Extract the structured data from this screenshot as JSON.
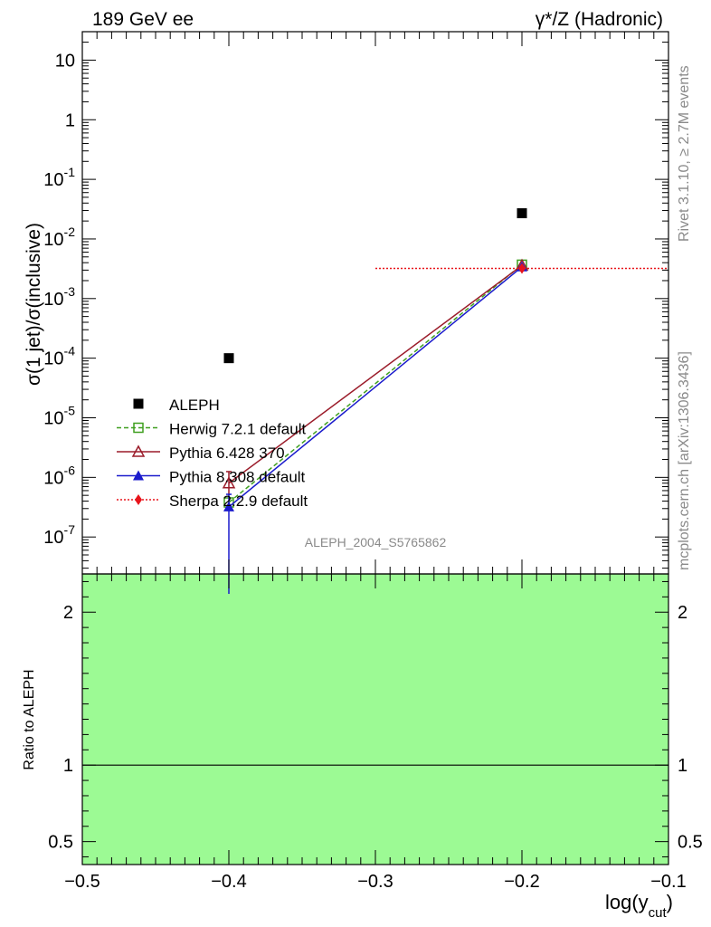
{
  "header": {
    "left": "189 GeV ee",
    "right": "γ*/Z (Hadronic)"
  },
  "side_labels": {
    "rivet": "Rivet 3.1.10, ≥ 2.7M events",
    "site": "mcplots.cern.ch [arXiv:1306.3436]"
  },
  "analysis_label": "ALEPH_2004_S5765862",
  "chart_data": [
    {
      "type": "line",
      "scale": "log",
      "ylabel": "σ(1 jet)/σ(inclusive)",
      "xlim": [
        -0.5,
        -0.1
      ],
      "ylim": [
        2.4e-08,
        30
      ],
      "y_tick_labels": [
        "10^-7",
        "10^-6",
        "10^-5",
        "10^-4",
        "10^-3",
        "10^-2",
        "10^-1",
        "1",
        "10"
      ],
      "legend_position": "lower-left",
      "series": [
        {
          "name": "ALEPH",
          "color": "#000000",
          "marker": "square-filled",
          "line": "none",
          "points": [
            {
              "x": -0.4,
              "y": 0.0001
            },
            {
              "x": -0.2,
              "y": 0.027
            }
          ]
        },
        {
          "name": "Herwig 7.2.1 default",
          "color": "#3f9f1f",
          "marker": "square-open",
          "line": "dashed",
          "points": [
            {
              "x": -0.4,
              "y": 3.8e-07
            },
            {
              "x": -0.2,
              "y": 0.0037
            }
          ]
        },
        {
          "name": "Pythia 6.428 370",
          "color": "#9b1c2a",
          "marker": "triangle-open",
          "line": "solid",
          "points": [
            {
              "x": -0.4,
              "y": 8e-07,
              "err_lo": 3e-07,
              "err_hi": 4.5e-07
            },
            {
              "x": -0.2,
              "y": 0.0036
            }
          ]
        },
        {
          "name": "Pythia 8.308 default",
          "color": "#1a1acc",
          "marker": "triangle-filled",
          "line": "solid",
          "points": [
            {
              "x": -0.4,
              "y": 3.2e-07,
              "err_lo": 3.2e-07,
              "err_hi": 2e-07
            },
            {
              "x": -0.2,
              "y": 0.0034
            }
          ]
        },
        {
          "name": "Sherpa 2.2.9 default",
          "color": "#e8141b",
          "marker": "diamond-filled",
          "line": "dotted",
          "points": [
            {
              "x": -0.2,
              "y": 0.0032,
              "x_lo": -0.3,
              "x_hi": -0.1
            }
          ]
        }
      ]
    },
    {
      "type": "line",
      "ylabel": "Ratio to ALEPH",
      "xlabel": "log(y_cut)",
      "xlim": [
        -0.5,
        -0.1
      ],
      "ylim": [
        0.35,
        2.25
      ],
      "x_ticks": [
        -0.5,
        -0.4,
        -0.3,
        -0.2,
        -0.1
      ],
      "x_tick_labels": [
        "−0.5",
        "−0.4",
        "−0.3",
        "−0.2",
        "−0.1"
      ],
      "y_ticks": [
        0.5,
        1,
        2
      ],
      "y_tick_labels": [
        "0.5",
        "1",
        "2"
      ],
      "band": {
        "x": [
          -0.5,
          -0.1
        ],
        "y": [
          0.35,
          2.25
        ],
        "color": "#9cfa94"
      },
      "reference_line": 1
    }
  ]
}
